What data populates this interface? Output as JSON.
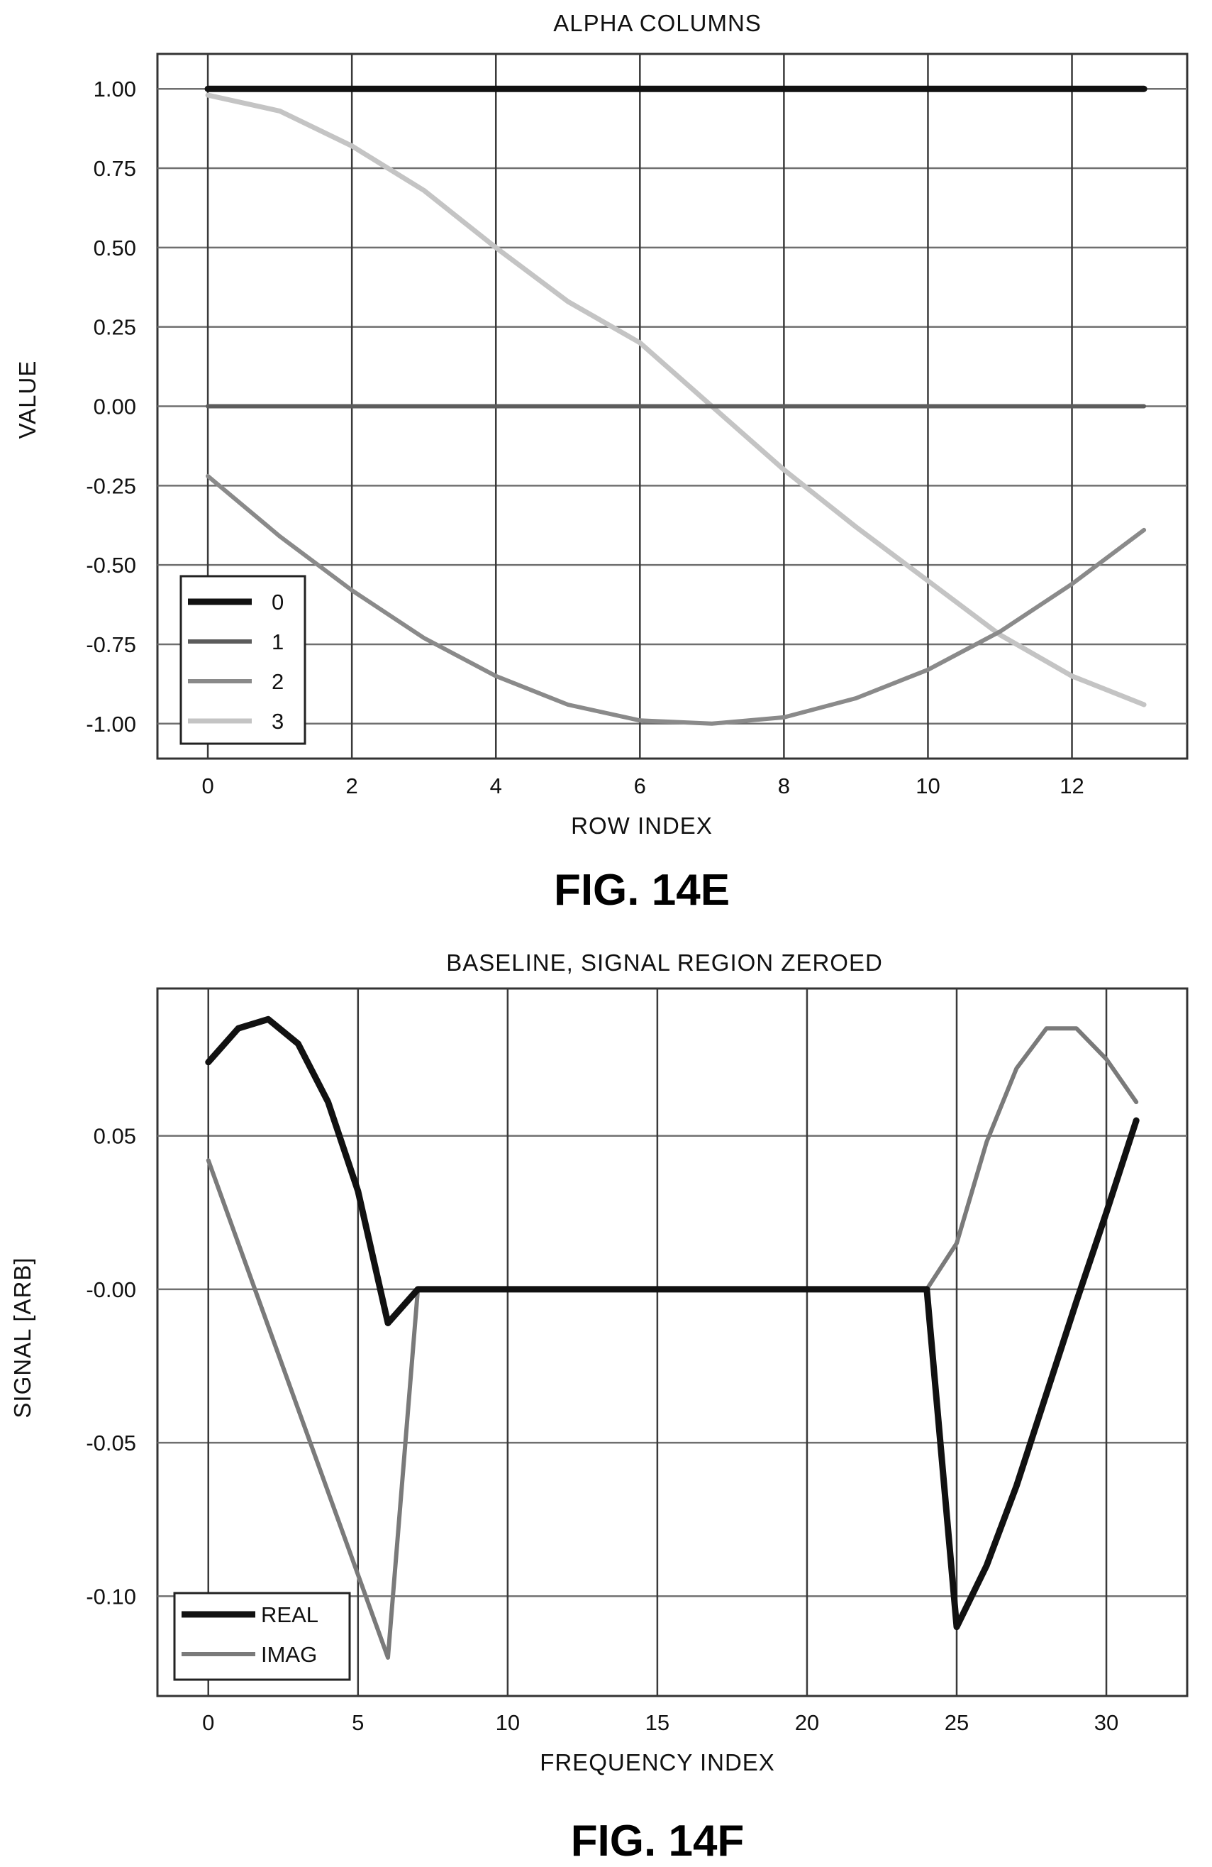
{
  "chart_data": [
    {
      "type": "line",
      "title": "ALPHA COLUMNS",
      "xlabel": "ROW INDEX",
      "ylabel": "VALUE",
      "caption": "FIG. 14E",
      "xlim": [
        -0.7,
        13.6
      ],
      "ylim": [
        -1.11,
        1.11
      ],
      "xticks": [
        0,
        2,
        4,
        6,
        8,
        10,
        12
      ],
      "xtick_labels": [
        "0",
        "2",
        "4",
        "6",
        "8",
        "10",
        "12"
      ],
      "yticks": [
        1.0,
        0.75,
        0.5,
        0.25,
        0.0,
        -0.25,
        -0.5,
        -0.75,
        -1.0
      ],
      "ytick_labels": [
        "1.00",
        "0.75",
        "0.50",
        "0.25",
        "0.00",
        "-0.25",
        "-0.50",
        "-0.75",
        "-1.00"
      ],
      "grid": true,
      "legend_position": "bottom-left",
      "x": [
        0,
        1,
        2,
        3,
        4,
        5,
        6,
        7,
        8,
        9,
        10,
        11,
        12,
        13
      ],
      "series": [
        {
          "name": "0",
          "color": "#111111",
          "width": 9,
          "values": [
            1.0,
            1.0,
            1.0,
            1.0,
            1.0,
            1.0,
            1.0,
            1.0,
            1.0,
            1.0,
            1.0,
            1.0,
            1.0,
            1.0
          ]
        },
        {
          "name": "1",
          "color": "#5c5c5c",
          "width": 6,
          "values": [
            0.0,
            0.0,
            0.0,
            0.0,
            0.0,
            0.0,
            0.0,
            0.0,
            0.0,
            0.0,
            0.0,
            0.0,
            0.0,
            0.0
          ]
        },
        {
          "name": "2",
          "color": "#8a8a8a",
          "width": 6,
          "values": [
            -0.22,
            -0.41,
            -0.58,
            -0.73,
            -0.85,
            -0.94,
            -0.99,
            -1.0,
            -0.98,
            -0.92,
            -0.83,
            -0.71,
            -0.56,
            -0.39
          ]
        },
        {
          "name": "3",
          "color": "#c4c4c4",
          "width": 7,
          "values": [
            0.98,
            0.93,
            0.82,
            0.68,
            0.5,
            0.33,
            0.2,
            0.0,
            -0.2,
            -0.38,
            -0.55,
            -0.72,
            -0.85,
            -0.94
          ]
        }
      ]
    },
    {
      "type": "line",
      "title": "BASELINE, SIGNAL REGION ZEROED",
      "xlabel": "FREQUENCY INDEX",
      "ylabel": "SIGNAL [ARB]",
      "caption": "FIG. 14F",
      "xlim": [
        -1.7,
        32.7
      ],
      "ylim": [
        -0.1325,
        0.098
      ],
      "xticks": [
        0,
        5,
        10,
        15,
        20,
        25,
        30
      ],
      "xtick_labels": [
        "0",
        "5",
        "10",
        "15",
        "20",
        "25",
        "30"
      ],
      "yticks": [
        0.05,
        0.0,
        -0.05,
        -0.1
      ],
      "ytick_labels": [
        "0.05",
        "-0.00",
        "-0.05",
        "-0.10"
      ],
      "grid": true,
      "legend_position": "bottom-left",
      "x": [
        0,
        1,
        2,
        3,
        4,
        5,
        6,
        7,
        8,
        9,
        10,
        11,
        12,
        13,
        14,
        15,
        16,
        17,
        18,
        19,
        20,
        21,
        22,
        23,
        24,
        25,
        26,
        27,
        28,
        29,
        30,
        31
      ],
      "series": [
        {
          "name": "REAL",
          "color": "#111111",
          "width": 9,
          "values": [
            0.074,
            0.085,
            0.088,
            0.08,
            0.061,
            0.032,
            -0.011,
            0.0,
            0.0,
            0.0,
            0.0,
            0.0,
            0.0,
            0.0,
            0.0,
            0.0,
            0.0,
            0.0,
            0.0,
            0.0,
            0.0,
            0.0,
            0.0,
            0.0,
            0.0,
            -0.11,
            -0.09,
            -0.064,
            -0.034,
            -0.004,
            0.025,
            0.055
          ]
        },
        {
          "name": "IMAG",
          "color": "#7a7a7a",
          "width": 6,
          "values": [
            0.042,
            0.015,
            -0.012,
            -0.039,
            -0.066,
            -0.093,
            -0.12,
            0.0,
            0.0,
            0.0,
            0.0,
            0.0,
            0.0,
            0.0,
            0.0,
            0.0,
            0.0,
            0.0,
            0.0,
            0.0,
            0.0,
            0.0,
            0.0,
            0.0,
            0.0,
            0.015,
            0.048,
            0.072,
            0.085,
            0.085,
            0.075,
            0.061
          ]
        }
      ]
    }
  ]
}
